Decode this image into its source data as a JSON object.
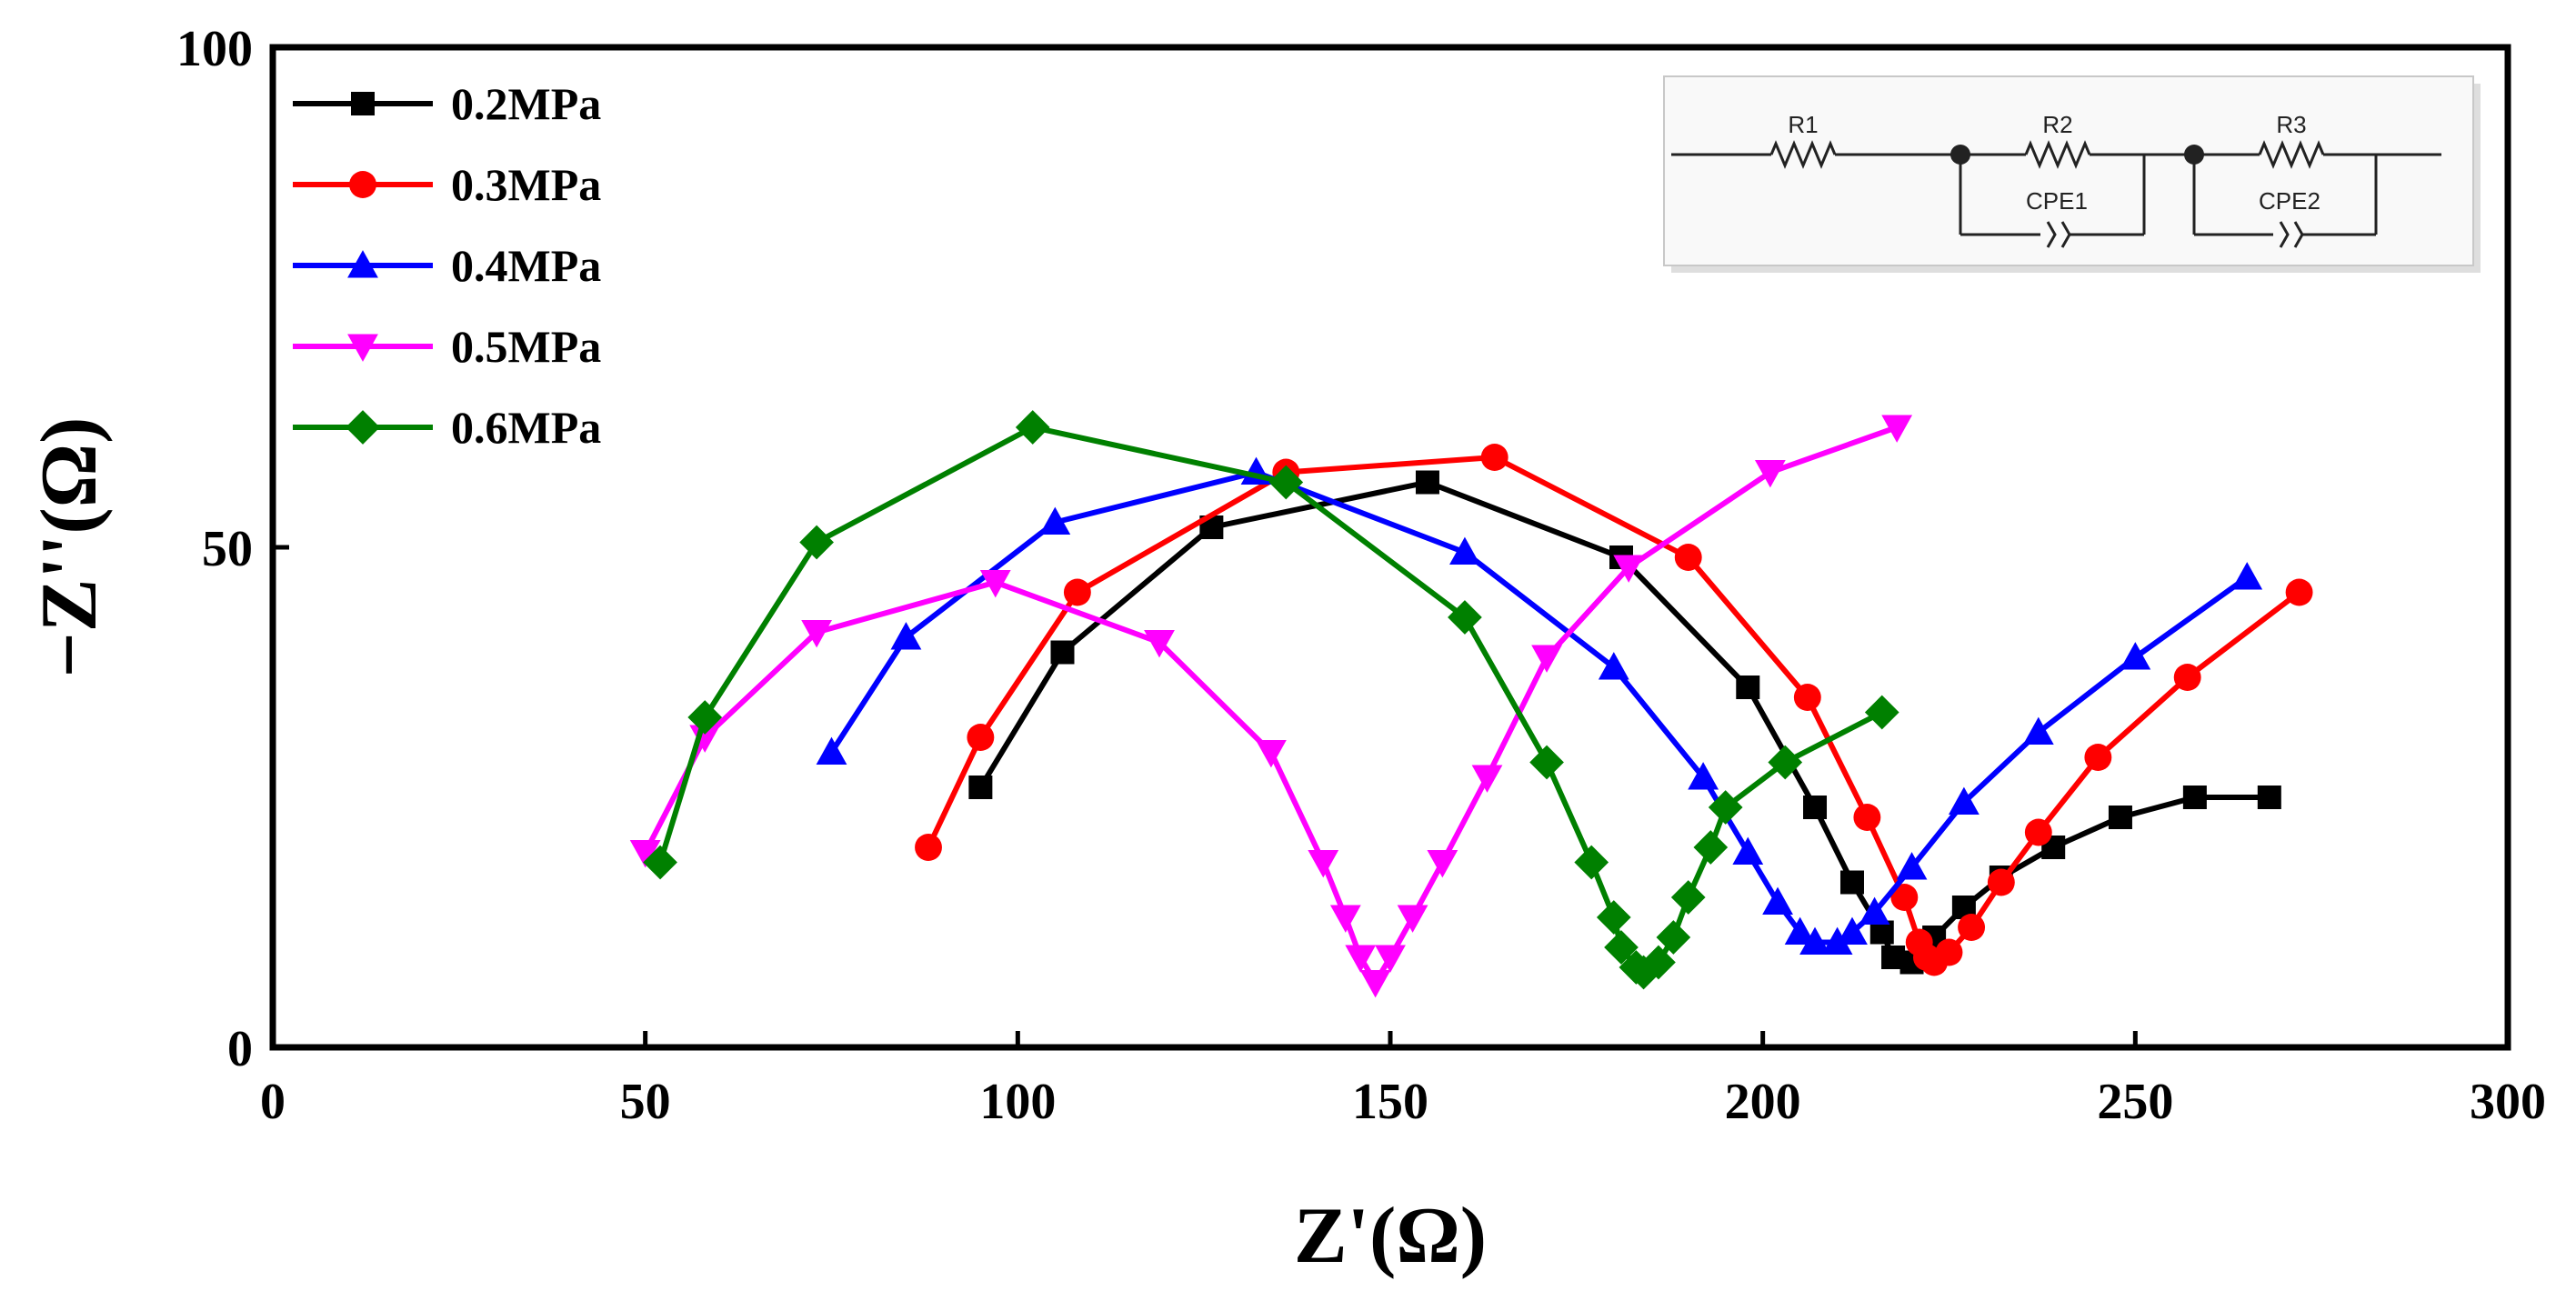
{
  "chart_data": {
    "type": "line",
    "title": "",
    "xlabel": "Z'(Ω)",
    "ylabel": "−Z''(Ω)",
    "xlim": [
      0,
      300
    ],
    "ylim": [
      0,
      100
    ],
    "x_ticks": [
      0,
      50,
      100,
      150,
      200,
      250,
      300
    ],
    "y_ticks": [
      0,
      50,
      100
    ],
    "x_tick_labels": [
      "0",
      "50",
      "100",
      "150",
      "200",
      "250",
      "300"
    ],
    "y_tick_labels": [
      "0",
      "50",
      "100"
    ],
    "grid": false,
    "legend_position": "top-left",
    "series": [
      {
        "name": "0.2MPa",
        "color": "#000000",
        "marker": "square",
        "points": [
          [
            95,
            26
          ],
          [
            106,
            39.5
          ],
          [
            126,
            52
          ],
          [
            155,
            56.5
          ],
          [
            181,
            49
          ],
          [
            198,
            36
          ],
          [
            207,
            24
          ],
          [
            212,
            16.5
          ],
          [
            216,
            11.5
          ],
          [
            217.5,
            9
          ],
          [
            220,
            8.5
          ],
          [
            223,
            11
          ],
          [
            227,
            14
          ],
          [
            232,
            17
          ],
          [
            239,
            20
          ],
          [
            248,
            23
          ],
          [
            258,
            25
          ],
          [
            268,
            25
          ]
        ]
      },
      {
        "name": "0.3MPa",
        "color": "#ff0000",
        "marker": "circle",
        "points": [
          [
            88,
            20
          ],
          [
            95,
            31
          ],
          [
            108,
            45.5
          ],
          [
            136,
            57.5
          ],
          [
            164,
            59
          ],
          [
            190,
            49
          ],
          [
            206,
            35
          ],
          [
            214,
            23
          ],
          [
            219,
            15
          ],
          [
            221,
            10.5
          ],
          [
            222,
            9
          ],
          [
            223,
            8.5
          ],
          [
            225,
            9.5
          ],
          [
            228,
            12
          ],
          [
            232,
            16.5
          ],
          [
            237,
            21.5
          ],
          [
            245,
            29
          ],
          [
            257,
            37
          ],
          [
            272,
            45.5
          ]
        ]
      },
      {
        "name": "0.4MPa",
        "color": "#0000ff",
        "marker": "triangle-up",
        "points": [
          [
            75,
            29.5
          ],
          [
            85,
            41
          ],
          [
            105,
            52.5
          ],
          [
            132,
            57.5
          ],
          [
            160,
            49.5
          ],
          [
            180,
            38
          ],
          [
            192,
            27
          ],
          [
            198,
            19.5
          ],
          [
            202,
            14.5
          ],
          [
            205,
            11.5
          ],
          [
            207,
            10.5
          ],
          [
            210,
            10.5
          ],
          [
            212,
            11.5
          ],
          [
            215,
            13.5
          ],
          [
            220,
            18
          ],
          [
            227,
            24.5
          ],
          [
            237,
            31.5
          ],
          [
            250,
            39
          ],
          [
            265,
            47
          ]
        ]
      },
      {
        "name": "0.5MPa",
        "color": "#ff00ff",
        "marker": "triangle-down",
        "points": [
          [
            50,
            19.5
          ],
          [
            58,
            31
          ],
          [
            73,
            41.5
          ],
          [
            97,
            46.5
          ],
          [
            119,
            40.5
          ],
          [
            134,
            29.5
          ],
          [
            141,
            18.5
          ],
          [
            144,
            13
          ],
          [
            146,
            9
          ],
          [
            148,
            6.5
          ],
          [
            150,
            9
          ],
          [
            153,
            13
          ],
          [
            157,
            18.5
          ],
          [
            163,
            27
          ],
          [
            171,
            39
          ],
          [
            182,
            48
          ],
          [
            201,
            57.5
          ],
          [
            218,
            62
          ]
        ]
      },
      {
        "name": "0.6MPa",
        "color": "#008000",
        "marker": "diamond",
        "points": [
          [
            52,
            18.5
          ],
          [
            58,
            33
          ],
          [
            73,
            50.5
          ],
          [
            102,
            62
          ],
          [
            136,
            56.5
          ],
          [
            160,
            43
          ],
          [
            171,
            28.5
          ],
          [
            177,
            18.5
          ],
          [
            180,
            13
          ],
          [
            181,
            10
          ],
          [
            183,
            8
          ],
          [
            184,
            7.5
          ],
          [
            186,
            8.5
          ],
          [
            188,
            11
          ],
          [
            190,
            15
          ],
          [
            193,
            20
          ],
          [
            195,
            24
          ],
          [
            203,
            28.5
          ],
          [
            216,
            33.5
          ]
        ]
      }
    ]
  },
  "inset": {
    "labels": [
      "R1",
      "R2",
      "R3",
      "CPE1",
      "CPE2"
    ]
  }
}
